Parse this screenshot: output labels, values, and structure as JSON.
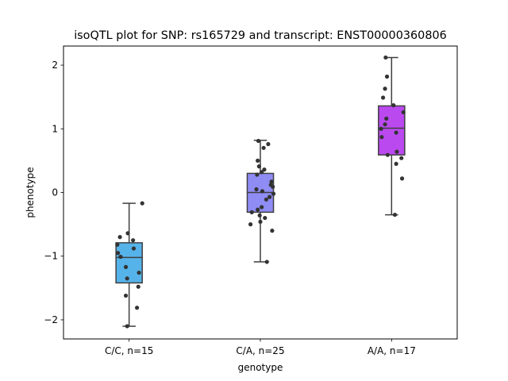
{
  "chart_data": {
    "type": "box",
    "title": "isoQTL plot for SNP: rs165729 and transcript: ENST00000360806",
    "xlabel": "genotype",
    "ylabel": "phenotype",
    "ylim": [
      -2.3,
      2.3
    ],
    "yticks": [
      -2,
      -1,
      0,
      1,
      2
    ],
    "ytick_labels": [
      "−2",
      "−1",
      "0",
      "1",
      "2"
    ],
    "grid": false,
    "categories": [
      "C/C, n=15",
      "C/A, n=25",
      "A/A, n=17"
    ],
    "boxes": [
      {
        "category": "C/C, n=15",
        "color": "#56b3ea",
        "whisker_low": -2.1,
        "q1": -1.42,
        "median": -1.02,
        "q3": -0.79,
        "whisker_high": -0.17
      },
      {
        "category": "C/A, n=25",
        "color": "#8f8cf4",
        "whisker_low": -1.09,
        "q1": -0.31,
        "median": 0.0,
        "q3": 0.3,
        "whisker_high": 0.82
      },
      {
        "category": "A/A, n=17",
        "color": "#bb49f0",
        "whisker_low": -0.35,
        "q1": 0.59,
        "median": 1.01,
        "q3": 1.36,
        "whisker_high": 2.12
      }
    ],
    "points": [
      [
        [
          -0.17,
          0.2
        ],
        [
          -0.64,
          -0.02
        ],
        [
          -0.7,
          -0.14
        ],
        [
          -0.75,
          0.06
        ],
        [
          -0.82,
          -0.18
        ],
        [
          -0.88,
          0.07
        ],
        [
          -0.95,
          -0.17
        ],
        [
          -1.01,
          -0.13
        ],
        [
          -1.17,
          -0.05
        ],
        [
          -1.26,
          0.15
        ],
        [
          -1.35,
          -0.03
        ],
        [
          -1.48,
          0.14
        ],
        [
          -1.62,
          -0.05
        ],
        [
          -1.81,
          0.12
        ],
        [
          -2.1,
          -0.03
        ]
      ],
      [
        [
          0.81,
          -0.03
        ],
        [
          0.76,
          0.12
        ],
        [
          0.7,
          0.05
        ],
        [
          0.5,
          -0.04
        ],
        [
          0.41,
          -0.02
        ],
        [
          0.36,
          0.06
        ],
        [
          0.32,
          0.02
        ],
        [
          0.28,
          -0.05
        ],
        [
          0.17,
          0.17
        ],
        [
          0.12,
          0.16
        ],
        [
          0.09,
          0.19
        ],
        [
          0.05,
          -0.06
        ],
        [
          0.02,
          0.03
        ],
        [
          -0.02,
          0.2
        ],
        [
          -0.07,
          0.14
        ],
        [
          -0.11,
          0.09
        ],
        [
          -0.23,
          0.02
        ],
        [
          -0.27,
          -0.04
        ],
        [
          -0.31,
          -0.13
        ],
        [
          -0.36,
          -0.01
        ],
        [
          -0.4,
          0.07
        ],
        [
          -0.46,
          0.0
        ],
        [
          -0.5,
          -0.15
        ],
        [
          -0.6,
          0.18
        ],
        [
          -1.09,
          0.1
        ]
      ],
      [
        [
          2.12,
          -0.09
        ],
        [
          1.82,
          -0.07
        ],
        [
          1.63,
          -0.1
        ],
        [
          1.49,
          -0.13
        ],
        [
          1.37,
          0.03
        ],
        [
          1.26,
          0.18
        ],
        [
          1.16,
          -0.08
        ],
        [
          1.07,
          -0.1
        ],
        [
          1.0,
          -0.16
        ],
        [
          0.94,
          0.07
        ],
        [
          0.87,
          -0.15
        ],
        [
          0.64,
          0.08
        ],
        [
          0.59,
          -0.06
        ],
        [
          0.54,
          0.15
        ],
        [
          0.45,
          0.07
        ],
        [
          0.22,
          0.16
        ],
        [
          -0.35,
          0.05
        ]
      ]
    ]
  }
}
